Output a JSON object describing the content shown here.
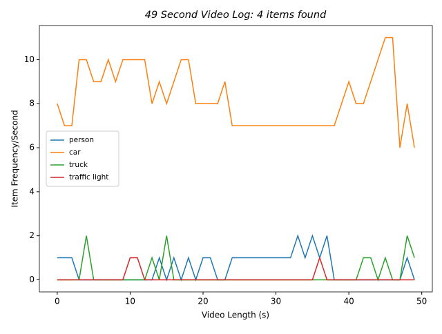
{
  "chart_data": {
    "type": "line",
    "title": "49 Second Video Log: 4 items found",
    "x_label": "Video Length (s)",
    "y_label": "Item Frequency/Second",
    "x": [
      0,
      1,
      2,
      3,
      4,
      5,
      6,
      7,
      8,
      9,
      10,
      11,
      12,
      13,
      14,
      15,
      16,
      17,
      18,
      19,
      20,
      21,
      22,
      23,
      24,
      25,
      26,
      27,
      28,
      29,
      30,
      31,
      32,
      33,
      34,
      35,
      36,
      37,
      38,
      39,
      40,
      41,
      42,
      43,
      44,
      45,
      46,
      47,
      48,
      49
    ],
    "series": [
      {
        "name": "person",
        "color": "#1f77b4",
        "values": [
          1,
          1,
          1,
          0,
          0,
          0,
          0,
          0,
          0,
          0,
          0,
          0,
          0,
          0,
          1,
          0,
          1,
          0,
          1,
          0,
          1,
          1,
          0,
          0,
          1,
          1,
          1,
          1,
          1,
          1,
          1,
          1,
          1,
          2,
          1,
          2,
          1,
          2,
          0,
          0,
          0,
          0,
          0,
          0,
          0,
          0,
          0,
          0,
          1,
          0
        ]
      },
      {
        "name": "car",
        "color": "#ff7f0e",
        "values": [
          8,
          7,
          7,
          10,
          10,
          9,
          9,
          10,
          9,
          10,
          10,
          10,
          10,
          8,
          9,
          8,
          9,
          10,
          10,
          8,
          8,
          8,
          8,
          9,
          7,
          7,
          7,
          7,
          7,
          7,
          7,
          7,
          7,
          7,
          7,
          7,
          7,
          7,
          7,
          8,
          9,
          8,
          8,
          9,
          10,
          11,
          11,
          6,
          8,
          6
        ]
      },
      {
        "name": "truck",
        "color": "#2ca02c",
        "values": [
          0,
          0,
          0,
          0,
          2,
          0,
          0,
          0,
          0,
          0,
          0,
          0,
          0,
          1,
          0,
          2,
          0,
          0,
          0,
          0,
          0,
          0,
          0,
          0,
          0,
          0,
          0,
          0,
          0,
          0,
          0,
          0,
          0,
          0,
          0,
          0,
          0,
          0,
          0,
          0,
          0,
          0,
          1,
          1,
          0,
          1,
          0,
          0,
          2,
          1
        ]
      },
      {
        "name": "traffic light",
        "color": "#d62728",
        "values": [
          0,
          0,
          0,
          0,
          0,
          0,
          0,
          0,
          0,
          0,
          1,
          1,
          0,
          0,
          0,
          0,
          0,
          0,
          0,
          0,
          0,
          0,
          0,
          0,
          0,
          0,
          0,
          0,
          0,
          0,
          0,
          0,
          0,
          0,
          0,
          0,
          1,
          0,
          0,
          0,
          0,
          0,
          0,
          0,
          0,
          0,
          0,
          0,
          0,
          0
        ]
      }
    ],
    "xlim": [
      -2.45,
      51.45
    ],
    "xticks": [
      0,
      10,
      20,
      30,
      40,
      50
    ],
    "ylim": [
      -0.55,
      11.55
    ],
    "yticks": [
      0,
      2,
      4,
      6,
      8,
      10
    ],
    "legend": "center left"
  }
}
